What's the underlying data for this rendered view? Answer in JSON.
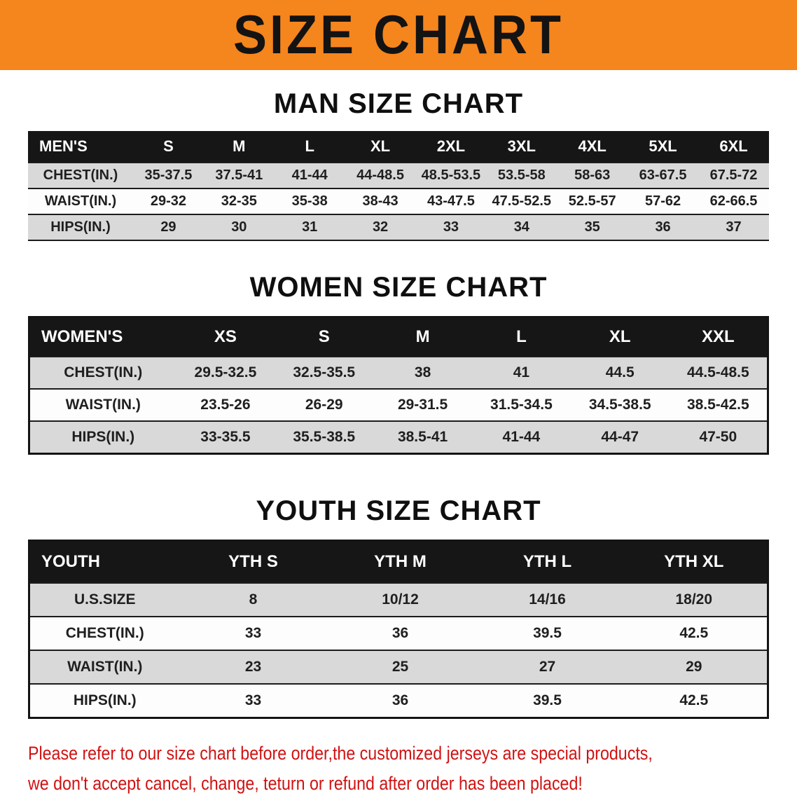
{
  "banner": {
    "title": "SIZE CHART",
    "bg_color": "#f5851d",
    "text_color": "#131313"
  },
  "colors": {
    "table_header_bg": "#161616",
    "table_header_text": "#ffffff",
    "shaded_row_bg": "#d9d9d9",
    "footer_text": "#d01212"
  },
  "sections": [
    {
      "heading": "MAN SIZE CHART",
      "table": {
        "label": "MEN'S",
        "columns": [
          "S",
          "M",
          "L",
          "XL",
          "2XL",
          "3XL",
          "4XL",
          "5XL",
          "6XL"
        ],
        "rows": [
          {
            "label": "CHEST(IN.)",
            "values": [
              "35-37.5",
              "37.5-41",
              "41-44",
              "44-48.5",
              "48.5-53.5",
              "53.5-58",
              "58-63",
              "63-67.5",
              "67.5-72"
            ]
          },
          {
            "label": "WAIST(IN.)",
            "values": [
              "29-32",
              "32-35",
              "35-38",
              "38-43",
              "43-47.5",
              "47.5-52.5",
              "52.5-57",
              "57-62",
              "62-66.5"
            ]
          },
          {
            "label": "HIPS(IN.)",
            "values": [
              "29",
              "30",
              "31",
              "32",
              "33",
              "34",
              "35",
              "36",
              "37"
            ]
          }
        ]
      }
    },
    {
      "heading": "WOMEN SIZE CHART",
      "table": {
        "label": "WOMEN'S",
        "columns": [
          "XS",
          "S",
          "M",
          "L",
          "XL",
          "XXL"
        ],
        "rows": [
          {
            "label": "CHEST(IN.)",
            "values": [
              "29.5-32.5",
              "32.5-35.5",
              "38",
              "41",
              "44.5",
              "44.5-48.5"
            ]
          },
          {
            "label": "WAIST(IN.)",
            "values": [
              "23.5-26",
              "26-29",
              "29-31.5",
              "31.5-34.5",
              "34.5-38.5",
              "38.5-42.5"
            ]
          },
          {
            "label": "HIPS(IN.)",
            "values": [
              "33-35.5",
              "35.5-38.5",
              "38.5-41",
              "41-44",
              "44-47",
              "47-50"
            ]
          }
        ]
      }
    },
    {
      "heading": "YOUTH SIZE CHART",
      "table": {
        "label": "YOUTH",
        "columns": [
          "YTH S",
          "YTH M",
          "YTH L",
          "YTH XL"
        ],
        "rows": [
          {
            "label": "U.S.SIZE",
            "values": [
              "8",
              "10/12",
              "14/16",
              "18/20"
            ]
          },
          {
            "label": "CHEST(IN.)",
            "values": [
              "33",
              "36",
              "39.5",
              "42.5"
            ]
          },
          {
            "label": "WAIST(IN.)",
            "values": [
              "23",
              "25",
              "27",
              "29"
            ]
          },
          {
            "label": "HIPS(IN.)",
            "values": [
              "33",
              "36",
              "39.5",
              "42.5"
            ]
          }
        ]
      }
    }
  ],
  "footer": {
    "line1": "Please refer to our size chart before order,the customized jerseys are special products,",
    "line2": "we don't accept cancel, change, teturn or refund after order has been placed!"
  }
}
